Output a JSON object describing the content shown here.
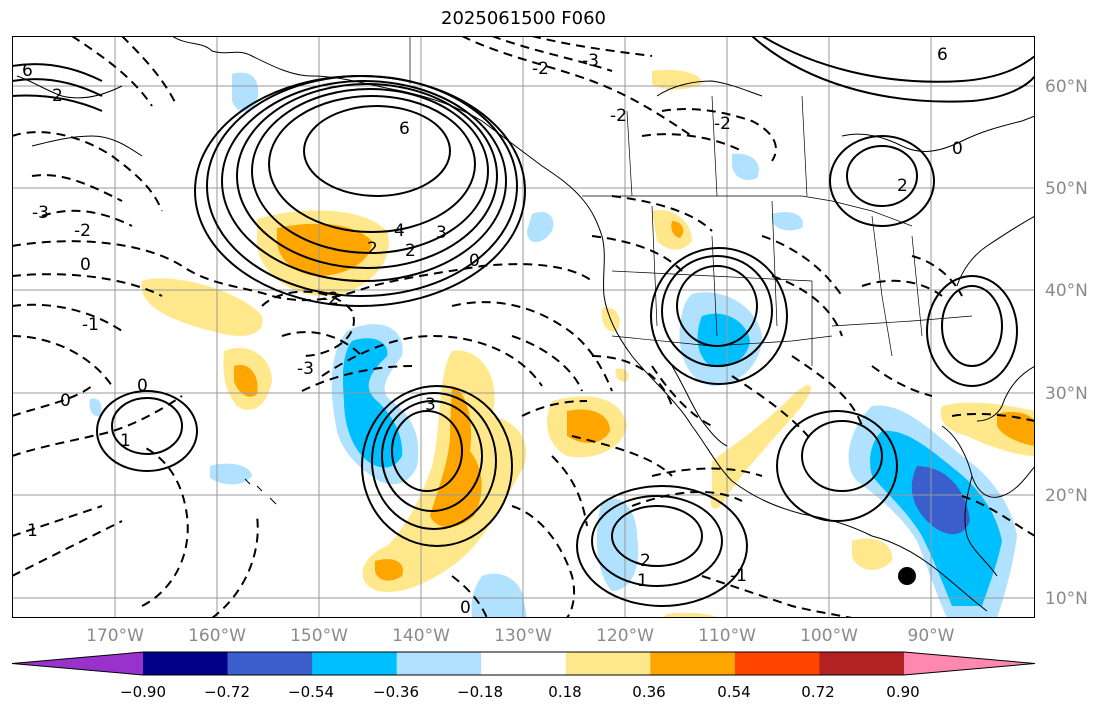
{
  "title": "2025061500 F060",
  "lat_labels": [
    "60°N",
    "50°N",
    "40°N",
    "30°N",
    "20°N",
    "10°N"
  ],
  "lon_labels": [
    "170°W",
    "160°W",
    "150°W",
    "140°W",
    "130°W",
    "120°W",
    "110°W",
    "100°W",
    "90°W"
  ],
  "contour_labels": {
    "ridge_high": "6",
    "ridge_4": "4",
    "ridge_3": "3",
    "ridge_2": "2",
    "neg2a": "-2",
    "neg2b": "-2",
    "neg2c": "-2",
    "neg2d": "-2",
    "neg2e": "-2",
    "neg3a": "-3",
    "neg3b": "-3",
    "neg3c": "-3",
    "neg1a": "-1",
    "neg1b": "-1",
    "zero_a": "0",
    "zero_b": "0",
    "zero_c": "0",
    "zero_d": "0",
    "zero_e": "0",
    "one_a": "1",
    "one_b": "1",
    "one_c": "1",
    "sw_two": "2",
    "ne_two": "2",
    "ne_zero": "0",
    "nw_two": "2",
    "mid_three": "3",
    "sub_two": "2",
    "nw_6": "6",
    "ne_6": "6"
  },
  "colorbar": {
    "ticks": [
      "−0.90",
      "−0.72",
      "−0.54",
      "−0.36",
      "−0.18",
      "0.18",
      "0.36",
      "0.54",
      "0.72",
      "0.90"
    ],
    "colors": [
      "#9932cc",
      "#00008b",
      "#3a5fcd",
      "#00bfff",
      "#b0e2ff",
      "#ffffff",
      "#ffe88c",
      "#ffa500",
      "#ff4500",
      "#b22222",
      "#ff88b0"
    ]
  },
  "marker": "black-dot"
}
